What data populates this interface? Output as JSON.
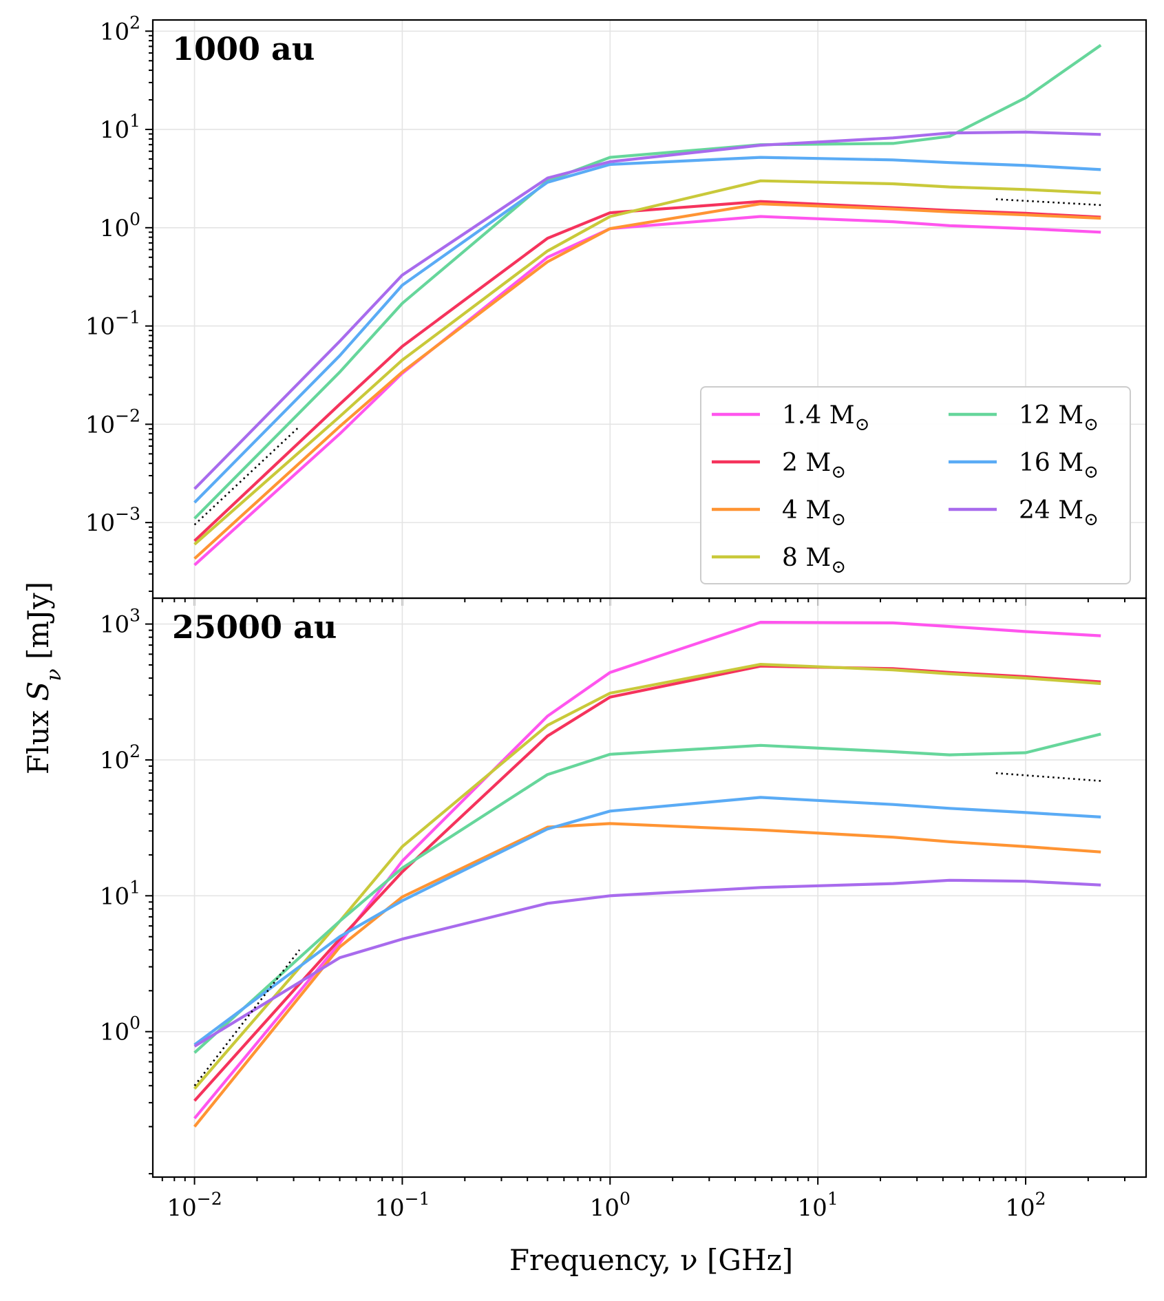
{
  "figure": {
    "xlabel": "Frequency, ν [GHz]",
    "ylabel": "Flux S_ν [mJy]"
  },
  "legend": {
    "placement": "lower-right",
    "entries": [
      {
        "label": "1.4 M☉",
        "color": "#ff55ee"
      },
      {
        "label": "2 M☉",
        "color": "#f5335c"
      },
      {
        "label": "4 M☉",
        "color": "#ff9433"
      },
      {
        "label": "8 M☉",
        "color": "#c9c93a"
      },
      {
        "label": "12 M☉",
        "color": "#66d69b"
      },
      {
        "label": "16 M☉",
        "color": "#5aabf5"
      },
      {
        "label": "24 M☉",
        "color": "#a86bed"
      }
    ]
  },
  "chart_data": [
    {
      "type": "line",
      "title": "1000 au",
      "xscale": "log",
      "yscale": "log",
      "xlim": [
        0.0063,
        380
      ],
      "ylim": [
        0.00017,
        130
      ],
      "x_ticks": [
        "10^-2",
        "10^-1",
        "10^0",
        "10^1",
        "10^2"
      ],
      "y_ticks": [
        "10^-3",
        "10^-2",
        "10^-1",
        "10^0",
        "10^1",
        "10^2"
      ],
      "grid": true,
      "x": [
        0.01,
        0.05,
        0.1,
        0.5,
        1,
        5.3,
        23,
        43,
        100,
        230
      ],
      "series": [
        {
          "name": "1.4 M☉",
          "color": "#ff55ee",
          "values": [
            0.00037,
            0.008,
            0.033,
            0.5,
            0.98,
            1.3,
            1.15,
            1.05,
            0.98,
            0.9
          ]
        },
        {
          "name": "2 M☉",
          "color": "#f5335c",
          "values": [
            0.00065,
            0.016,
            0.062,
            0.78,
            1.42,
            1.85,
            1.6,
            1.5,
            1.4,
            1.28
          ]
        },
        {
          "name": "4 M☉",
          "color": "#ff9433",
          "values": [
            0.00043,
            0.0095,
            0.034,
            0.45,
            0.98,
            1.75,
            1.55,
            1.45,
            1.35,
            1.25
          ]
        },
        {
          "name": "8 M☉",
          "color": "#c9c93a",
          "values": [
            0.0006,
            0.012,
            0.045,
            0.58,
            1.3,
            3.0,
            2.8,
            2.6,
            2.45,
            2.25
          ]
        },
        {
          "name": "12 M☉",
          "color": "#66d69b",
          "values": [
            0.0011,
            0.034,
            0.17,
            3.0,
            5.2,
            7.0,
            7.2,
            8.5,
            21,
            72
          ]
        },
        {
          "name": "16 M☉",
          "color": "#5aabf5",
          "values": [
            0.0016,
            0.05,
            0.26,
            2.9,
            4.4,
            5.2,
            4.9,
            4.6,
            4.3,
            3.9
          ]
        },
        {
          "name": "24 M☉",
          "color": "#a86bed",
          "values": [
            0.0022,
            0.07,
            0.33,
            3.2,
            4.7,
            6.9,
            8.2,
            9.2,
            9.4,
            8.9
          ]
        }
      ],
      "reference_lines": [
        {
          "style": "dotted",
          "color": "#000000",
          "x": [
            0.01,
            0.032
          ],
          "y": [
            0.00095,
            0.0095
          ]
        },
        {
          "style": "dotted",
          "color": "#000000",
          "x": [
            72,
            230
          ],
          "y": [
            1.95,
            1.7
          ]
        }
      ]
    },
    {
      "type": "line",
      "title": "25000 au",
      "xscale": "log",
      "yscale": "log",
      "xlim": [
        0.0063,
        380
      ],
      "ylim": [
        0.085,
        1550
      ],
      "x_ticks": [
        "10^-2",
        "10^-1",
        "10^0",
        "10^1",
        "10^2"
      ],
      "y_ticks": [
        "10^0",
        "10^1",
        "10^2",
        "10^3"
      ],
      "grid": true,
      "x": [
        0.01,
        0.05,
        0.1,
        0.5,
        1,
        5.3,
        23,
        43,
        100,
        230
      ],
      "series": [
        {
          "name": "1.4 M☉",
          "color": "#ff55ee",
          "values": [
            0.23,
            4.5,
            18,
            210,
            440,
            1030,
            1020,
            960,
            880,
            820
          ]
        },
        {
          "name": "2 M☉",
          "color": "#f5335c",
          "values": [
            0.31,
            4.8,
            15,
            150,
            290,
            490,
            470,
            440,
            410,
            375
          ]
        },
        {
          "name": "4 M☉",
          "color": "#ff9433",
          "values": [
            0.2,
            4.2,
            9.8,
            32,
            34,
            30.5,
            27,
            25,
            23,
            21
          ]
        },
        {
          "name": "8 M☉",
          "color": "#c9c93a",
          "values": [
            0.38,
            6.5,
            23,
            180,
            310,
            505,
            460,
            430,
            400,
            365
          ]
        },
        {
          "name": "12 M☉",
          "color": "#66d69b",
          "values": [
            0.7,
            6.5,
            16,
            78,
            110,
            128,
            115,
            109,
            113,
            155
          ]
        },
        {
          "name": "16 M☉",
          "color": "#5aabf5",
          "values": [
            0.8,
            5.0,
            9.2,
            31,
            42,
            53,
            47,
            44,
            41,
            38
          ]
        },
        {
          "name": "24 M☉",
          "color": "#a86bed",
          "values": [
            0.78,
            3.5,
            4.8,
            8.8,
            10,
            11.5,
            12.3,
            13,
            12.8,
            12
          ]
        }
      ],
      "reference_lines": [
        {
          "style": "dotted",
          "color": "#000000",
          "x": [
            0.01,
            0.032
          ],
          "y": [
            0.4,
            4.0
          ]
        },
        {
          "style": "dotted",
          "color": "#000000",
          "x": [
            72,
            230
          ],
          "y": [
            80,
            70
          ]
        }
      ]
    }
  ]
}
